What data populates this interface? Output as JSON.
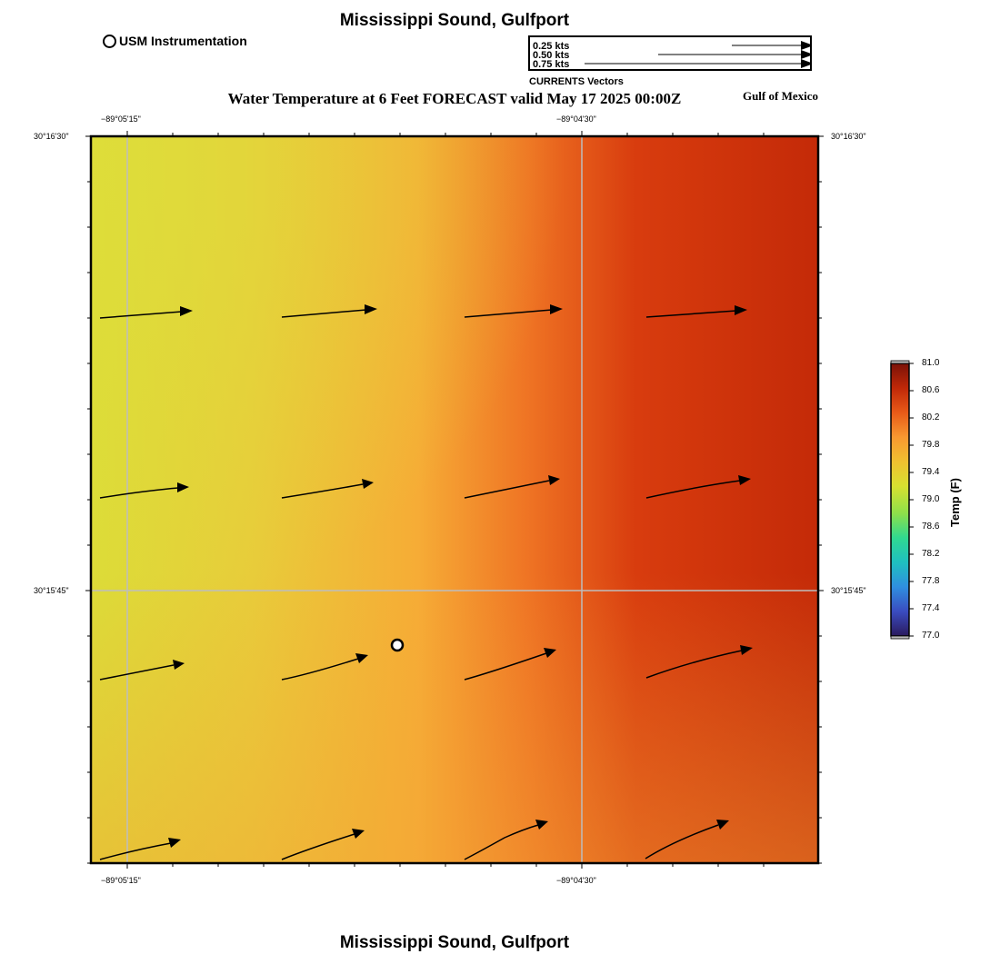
{
  "header": {
    "location_title": "Mississippi Sound, Gulfport",
    "forecast_title": "Water Temperature at 6 Feet FORECAST valid May 17 2025 00:00Z",
    "region_label": "Gulf of Mexico",
    "marker_legend_label": "USM Instrumentation"
  },
  "vector_legend": {
    "rows": [
      "0.25 kts",
      "0.50 kts",
      "0.75 kts"
    ],
    "caption": "CURRENTS Vectors"
  },
  "footer": {
    "location_title": "Mississippi Sound, Gulfport"
  },
  "map": {
    "longitude_labels": [
      "−89°05'15\"",
      "−89°04'30\""
    ],
    "latitude_labels": [
      "30°16'30\"",
      "30°15'45\""
    ],
    "grid_color": "#bdbdbd",
    "instrument_marker": {
      "label": "USM Instrumentation"
    }
  },
  "colorbar": {
    "title": "Temp (F)",
    "tick_labels": [
      "81.0",
      "80.6",
      "80.2",
      "79.8",
      "79.4",
      "79.0",
      "78.6",
      "78.2",
      "77.8",
      "77.4",
      "77.0"
    ],
    "range": [
      77.0,
      81.0
    ],
    "colors": [
      "#2a1a5e",
      "#3a4cc0",
      "#2f8fe0",
      "#1fc0c0",
      "#30d890",
      "#8ee04a",
      "#d8e030",
      "#f0c030",
      "#f89830",
      "#e85a18",
      "#c02808",
      "#7a1208"
    ]
  }
}
